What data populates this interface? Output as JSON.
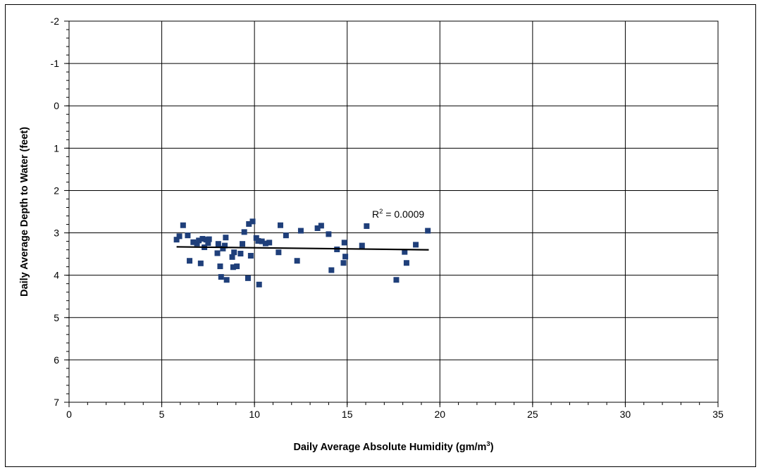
{
  "chart_data": {
    "type": "scatter",
    "xlabel_main": "Daily Average Absolute Humidity (gm/m",
    "xlabel_sup": "3",
    "xlabel_end": ")",
    "ylabel": "Daily Average Depth to Water (feet)",
    "xlim": [
      0,
      35
    ],
    "ylim": [
      -2,
      7
    ],
    "y_inverted": true,
    "x_ticks": [
      0,
      5,
      10,
      15,
      20,
      25,
      30,
      35
    ],
    "y_ticks": [
      -2,
      -1,
      0,
      1,
      2,
      3,
      4,
      5,
      6,
      7
    ],
    "grid": true,
    "marker_color": "#1f3f7a",
    "trendline_color": "#000000",
    "annotation": {
      "prefix": "R",
      "sup": "2",
      "suffix": " = 0.0009"
    },
    "trendline": {
      "x": [
        5.8,
        19.4
      ],
      "y": [
        3.33,
        3.4
      ]
    },
    "points": [
      {
        "x": 5.8,
        "y": 3.16
      },
      {
        "x": 5.95,
        "y": 3.08
      },
      {
        "x": 6.15,
        "y": 2.82
      },
      {
        "x": 6.4,
        "y": 3.06
      },
      {
        "x": 6.5,
        "y": 3.66
      },
      {
        "x": 6.7,
        "y": 3.22
      },
      {
        "x": 6.9,
        "y": 3.25
      },
      {
        "x": 7.0,
        "y": 3.18
      },
      {
        "x": 7.1,
        "y": 3.72
      },
      {
        "x": 7.2,
        "y": 3.14
      },
      {
        "x": 7.3,
        "y": 3.34
      },
      {
        "x": 7.4,
        "y": 3.16
      },
      {
        "x": 7.5,
        "y": 3.24
      },
      {
        "x": 7.55,
        "y": 3.15
      },
      {
        "x": 8.0,
        "y": 3.48
      },
      {
        "x": 8.05,
        "y": 3.26
      },
      {
        "x": 8.15,
        "y": 3.79
      },
      {
        "x": 8.2,
        "y": 4.04
      },
      {
        "x": 8.3,
        "y": 3.37
      },
      {
        "x": 8.4,
        "y": 3.3
      },
      {
        "x": 8.45,
        "y": 3.11
      },
      {
        "x": 8.5,
        "y": 4.11
      },
      {
        "x": 8.8,
        "y": 3.57
      },
      {
        "x": 8.85,
        "y": 3.81
      },
      {
        "x": 8.9,
        "y": 3.46
      },
      {
        "x": 9.05,
        "y": 3.79
      },
      {
        "x": 9.25,
        "y": 3.49
      },
      {
        "x": 9.35,
        "y": 3.26
      },
      {
        "x": 9.45,
        "y": 2.98
      },
      {
        "x": 9.65,
        "y": 4.07
      },
      {
        "x": 9.7,
        "y": 2.79
      },
      {
        "x": 9.8,
        "y": 3.54
      },
      {
        "x": 9.9,
        "y": 2.73
      },
      {
        "x": 10.1,
        "y": 3.12
      },
      {
        "x": 10.2,
        "y": 3.19
      },
      {
        "x": 10.25,
        "y": 4.22
      },
      {
        "x": 10.4,
        "y": 3.2
      },
      {
        "x": 10.6,
        "y": 3.25
      },
      {
        "x": 10.8,
        "y": 3.23
      },
      {
        "x": 11.3,
        "y": 3.46
      },
      {
        "x": 11.4,
        "y": 2.82
      },
      {
        "x": 11.7,
        "y": 3.06
      },
      {
        "x": 12.3,
        "y": 3.66
      },
      {
        "x": 12.5,
        "y": 2.95
      },
      {
        "x": 13.4,
        "y": 2.89
      },
      {
        "x": 13.6,
        "y": 2.83
      },
      {
        "x": 14.0,
        "y": 3.03
      },
      {
        "x": 14.15,
        "y": 3.88
      },
      {
        "x": 14.45,
        "y": 3.39
      },
      {
        "x": 14.8,
        "y": 3.71
      },
      {
        "x": 14.85,
        "y": 3.23
      },
      {
        "x": 14.9,
        "y": 3.56
      },
      {
        "x": 15.8,
        "y": 3.3
      },
      {
        "x": 16.05,
        "y": 2.84
      },
      {
        "x": 17.65,
        "y": 4.11
      },
      {
        "x": 18.1,
        "y": 3.45
      },
      {
        "x": 18.2,
        "y": 3.71
      },
      {
        "x": 18.7,
        "y": 3.28
      },
      {
        "x": 19.35,
        "y": 2.95
      }
    ]
  }
}
